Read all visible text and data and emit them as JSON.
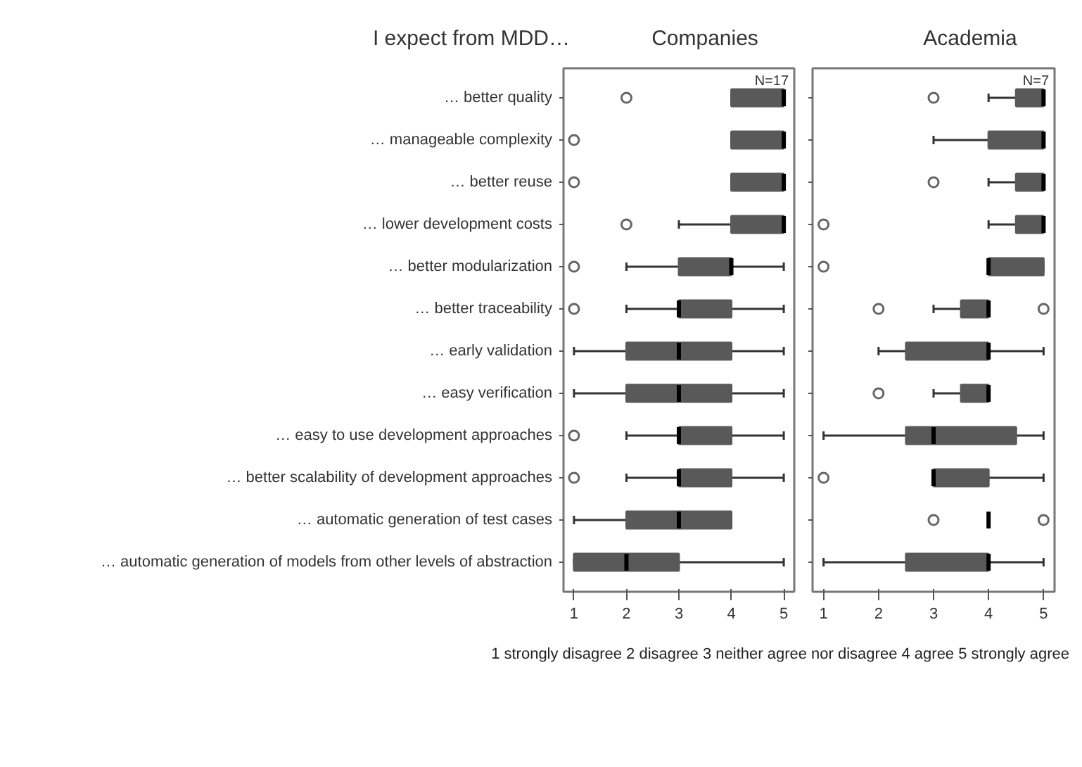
{
  "chart_data": [
    {
      "type": "box",
      "title": "Companies",
      "orientation": "horizontal",
      "categories": [
        "… better quality",
        "… manageable complexity",
        "… better reuse",
        "… lower development costs",
        "… better modularization",
        "… better traceability",
        "… early validation",
        "… easy verification",
        "… easy to use development approaches",
        "… better scalability of development approaches",
        "… automatic generation of test cases",
        "… automatic generation of models from other levels of abstraction"
      ],
      "xlim": [
        0.8,
        5.2
      ],
      "xticks": [
        1,
        2,
        3,
        4,
        5
      ],
      "grid": false,
      "annotations": [
        "I expect from MDD…",
        "N=17"
      ],
      "series": [
        {
          "color": "#595959",
          "boxes": [
            {
              "low": 4,
              "q1": 4,
              "median": 5,
              "q3": 5,
              "high": 5,
              "outliers": [
                2
              ]
            },
            {
              "low": 4,
              "q1": 4,
              "median": 5,
              "q3": 5,
              "high": 5,
              "outliers": [
                1
              ]
            },
            {
              "low": 4,
              "q1": 4,
              "median": 5,
              "q3": 5,
              "high": 5,
              "outliers": [
                1
              ]
            },
            {
              "low": 3,
              "q1": 4,
              "median": 5,
              "q3": 5,
              "high": 5,
              "outliers": [
                2
              ]
            },
            {
              "low": 2,
              "q1": 3,
              "median": 4,
              "q3": 4,
              "high": 5,
              "outliers": [
                1
              ]
            },
            {
              "low": 2,
              "q1": 3,
              "median": 3,
              "q3": 4,
              "high": 5,
              "outliers": [
                1
              ]
            },
            {
              "low": 1,
              "q1": 2,
              "median": 3,
              "q3": 4,
              "high": 5
            },
            {
              "low": 1,
              "q1": 2,
              "median": 3,
              "q3": 4,
              "high": 5
            },
            {
              "low": 2,
              "q1": 3,
              "median": 3,
              "q3": 4,
              "high": 5,
              "outliers": [
                1
              ]
            },
            {
              "low": 2,
              "q1": 3,
              "median": 3,
              "q3": 4,
              "high": 5,
              "outliers": [
                1
              ]
            },
            {
              "low": 1,
              "q1": 2,
              "median": 3,
              "q3": 4,
              "high": 4
            },
            {
              "low": 1,
              "q1": 1,
              "median": 2,
              "q3": 3,
              "high": 5
            }
          ]
        }
      ]
    },
    {
      "type": "box",
      "title": "Academia",
      "orientation": "horizontal",
      "tick_labels": "x",
      "xlim": [
        0.8,
        5.2
      ],
      "xticks": [
        1,
        2,
        3,
        4,
        5
      ],
      "grid": false,
      "annotations": [
        "1 strongly disagree 2 disagree 3 neither agree nor disagree 4 agree 5 strongly agree",
        "N=7"
      ],
      "series": [
        {
          "color": "#595959",
          "boxes": [
            {
              "low": 4,
              "q1": 4.5,
              "median": 5,
              "q3": 5,
              "high": 5,
              "outliers": [
                3
              ]
            },
            {
              "low": 3,
              "q1": 4,
              "median": 5,
              "q3": 5,
              "high": 5
            },
            {
              "low": 4,
              "q1": 4.5,
              "median": 5,
              "q3": 5,
              "high": 5,
              "outliers": [
                3
              ]
            },
            {
              "low": 4,
              "q1": 4.5,
              "median": 5,
              "q3": 5,
              "high": 5,
              "outliers": [
                1
              ]
            },
            {
              "low": 4,
              "q1": 4,
              "median": 4,
              "q3": 5,
              "high": 5,
              "outliers": [
                1
              ]
            },
            {
              "low": 3,
              "q1": 3.5,
              "median": 4,
              "q3": 4,
              "high": 4,
              "outliers": [
                2,
                5
              ]
            },
            {
              "low": 2,
              "q1": 2.5,
              "median": 4,
              "q3": 4,
              "high": 5
            },
            {
              "low": 3,
              "q1": 3.5,
              "median": 4,
              "q3": 4,
              "high": 4,
              "outliers": [
                2
              ]
            },
            {
              "low": 1,
              "q1": 2.5,
              "median": 3,
              "q3": 4.5,
              "high": 5
            },
            {
              "low": 3,
              "q1": 3,
              "median": 3,
              "q3": 4,
              "high": 5,
              "outliers": [
                1
              ]
            },
            {
              "low": 4,
              "q1": 4,
              "median": 4,
              "q3": 4,
              "high": 4,
              "outliers": [
                3,
                5
              ]
            },
            {
              "low": 1,
              "q1": 2.5,
              "median": 4,
              "q3": 4,
              "high": 5
            }
          ]
        }
      ]
    }
  ]
}
